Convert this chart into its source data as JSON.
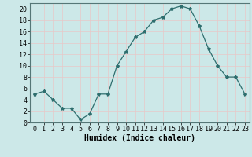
{
  "x": [
    0,
    1,
    2,
    3,
    4,
    5,
    6,
    7,
    8,
    9,
    10,
    11,
    12,
    13,
    14,
    15,
    16,
    17,
    18,
    19,
    20,
    21,
    22,
    23
  ],
  "y": [
    5,
    5.5,
    4,
    2.5,
    2.5,
    0.5,
    1.5,
    5,
    5,
    10,
    12.5,
    15,
    16,
    18,
    18.5,
    20,
    20.5,
    20,
    17,
    13,
    10,
    8,
    8,
    5
  ],
  "line_color": "#2e6e6e",
  "marker": "*",
  "marker_size": 3,
  "bg_color": "#cce8e8",
  "grid_color_minor": "#e8c8c8",
  "grid_color_major": "#c0d0d0",
  "xlabel": "Humidex (Indice chaleur)",
  "xlabel_fontsize": 7,
  "tick_fontsize": 6,
  "xlim": [
    -0.5,
    23.5
  ],
  "ylim": [
    0,
    21
  ],
  "yticks": [
    0,
    2,
    4,
    6,
    8,
    10,
    12,
    14,
    16,
    18,
    20
  ],
  "xticks": [
    0,
    1,
    2,
    3,
    4,
    5,
    6,
    7,
    8,
    9,
    10,
    11,
    12,
    13,
    14,
    15,
    16,
    17,
    18,
    19,
    20,
    21,
    22,
    23
  ]
}
